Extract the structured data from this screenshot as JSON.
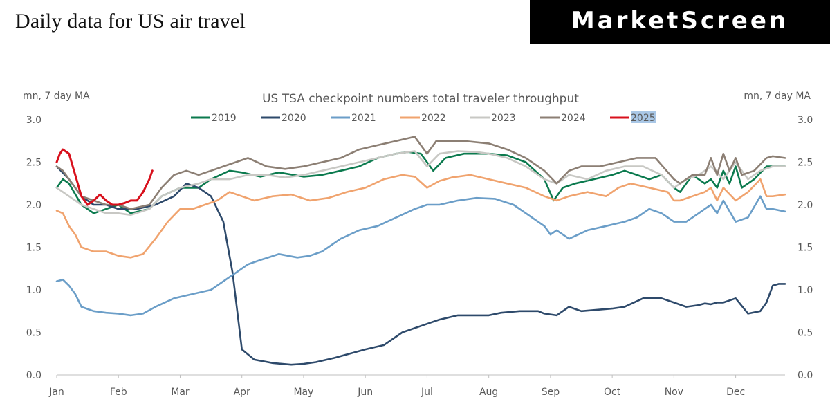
{
  "header": {
    "title": "Daily data for US air travel",
    "brand": "MarketScreen"
  },
  "chart_data": {
    "type": "line",
    "title": "US TSA checkpoint numbers total traveler throughput",
    "ylabel_left": "mn, 7 day MA",
    "ylabel_right": "mn, 7 day MA",
    "ylim": [
      0,
      3
    ],
    "yticks": [
      0,
      0.5,
      1,
      1.5,
      2,
      2.5,
      3
    ],
    "ytick_labels": [
      "0.0",
      "0.5",
      "1.0",
      "1.5",
      "2.0",
      "2.5",
      "3.0"
    ],
    "xlim": [
      0,
      11.8
    ],
    "xticks": [
      0,
      1,
      2,
      3,
      4,
      5,
      6,
      7,
      8,
      9,
      10,
      11
    ],
    "xtick_labels": [
      "Jan",
      "Feb",
      "Mar",
      "Apr",
      "May",
      "Jun",
      "Jul",
      "Aug",
      "Sep",
      "Oct",
      "Nov",
      "Dec"
    ],
    "legend_position": "top-center",
    "legend_highlight": "2025",
    "series": [
      {
        "name": "2019",
        "color": "#0b7a4e",
        "x": [
          0,
          0.1,
          0.2,
          0.4,
          0.6,
          0.8,
          1,
          1.2,
          1.5,
          1.7,
          2,
          2.3,
          2.5,
          2.8,
          3,
          3.3,
          3.6,
          4,
          4.3,
          4.6,
          4.9,
          5.2,
          5.5,
          5.7,
          5.9,
          6.1,
          6.3,
          6.6,
          7,
          7.3,
          7.6,
          7.9,
          8.05,
          8.2,
          8.4,
          8.7,
          9,
          9.2,
          9.4,
          9.6,
          9.8,
          10,
          10.1,
          10.3,
          10.5,
          10.6,
          10.7,
          10.8,
          10.9,
          11,
          11.1,
          11.3,
          11.5,
          11.6,
          11.8
        ],
        "values": [
          2.2,
          2.3,
          2.25,
          2.0,
          1.9,
          1.95,
          2.0,
          1.9,
          1.95,
          2.1,
          2.2,
          2.2,
          2.3,
          2.4,
          2.38,
          2.33,
          2.38,
          2.33,
          2.35,
          2.4,
          2.45,
          2.55,
          2.6,
          2.62,
          2.6,
          2.4,
          2.55,
          2.6,
          2.6,
          2.58,
          2.5,
          2.3,
          2.05,
          2.2,
          2.25,
          2.3,
          2.35,
          2.4,
          2.35,
          2.3,
          2.35,
          2.2,
          2.15,
          2.35,
          2.25,
          2.3,
          2.2,
          2.4,
          2.25,
          2.45,
          2.2,
          2.3,
          2.45,
          2.45,
          2.45
        ]
      },
      {
        "name": "2020",
        "color": "#2e4a6b",
        "x": [
          0,
          0.2,
          0.4,
          0.6,
          0.8,
          1,
          1.3,
          1.6,
          1.9,
          2.1,
          2.3,
          2.5,
          2.7,
          2.85,
          3,
          3.2,
          3.5,
          3.8,
          4,
          4.2,
          4.5,
          5,
          5.3,
          5.6,
          6,
          6.2,
          6.5,
          7,
          7.2,
          7.5,
          7.8,
          7.9,
          8.1,
          8.3,
          8.5,
          9,
          9.2,
          9.5,
          9.8,
          10,
          10.2,
          10.4,
          10.5,
          10.6,
          10.7,
          10.8,
          11,
          11.2,
          11.4,
          11.5,
          11.6,
          11.7,
          11.8
        ],
        "values": [
          2.45,
          2.3,
          2.1,
          2.0,
          2.0,
          1.95,
          1.95,
          2.0,
          2.1,
          2.25,
          2.2,
          2.1,
          1.8,
          1.2,
          0.3,
          0.18,
          0.14,
          0.12,
          0.13,
          0.15,
          0.2,
          0.3,
          0.35,
          0.5,
          0.6,
          0.65,
          0.7,
          0.7,
          0.73,
          0.75,
          0.75,
          0.72,
          0.7,
          0.8,
          0.75,
          0.78,
          0.8,
          0.9,
          0.9,
          0.85,
          0.8,
          0.82,
          0.84,
          0.83,
          0.85,
          0.85,
          0.9,
          0.72,
          0.75,
          0.85,
          1.05,
          1.07,
          1.07
        ]
      },
      {
        "name": "2021",
        "color": "#6b9ec8",
        "x": [
          0,
          0.1,
          0.2,
          0.3,
          0.4,
          0.6,
          0.8,
          1,
          1.2,
          1.4,
          1.6,
          1.9,
          2.2,
          2.5,
          2.7,
          2.9,
          3.1,
          3.3,
          3.6,
          3.9,
          4.1,
          4.3,
          4.6,
          4.9,
          5.2,
          5.5,
          5.8,
          6,
          6.2,
          6.5,
          6.8,
          7.1,
          7.4,
          7.7,
          7.9,
          8,
          8.1,
          8.3,
          8.6,
          8.9,
          9.2,
          9.4,
          9.6,
          9.8,
          10,
          10.2,
          10.4,
          10.5,
          10.6,
          10.7,
          10.8,
          11,
          11.2,
          11.4,
          11.5,
          11.6,
          11.8
        ],
        "values": [
          1.1,
          1.12,
          1.05,
          0.95,
          0.8,
          0.75,
          0.73,
          0.72,
          0.7,
          0.72,
          0.8,
          0.9,
          0.95,
          1.0,
          1.1,
          1.2,
          1.3,
          1.35,
          1.42,
          1.38,
          1.4,
          1.45,
          1.6,
          1.7,
          1.75,
          1.85,
          1.95,
          2.0,
          2.0,
          2.05,
          2.08,
          2.07,
          2.0,
          1.85,
          1.75,
          1.65,
          1.7,
          1.6,
          1.7,
          1.75,
          1.8,
          1.85,
          1.95,
          1.9,
          1.8,
          1.8,
          1.9,
          1.95,
          2.0,
          1.9,
          2.05,
          1.8,
          1.85,
          2.1,
          1.95,
          1.95,
          1.92
        ]
      },
      {
        "name": "2022",
        "color": "#f0a36e",
        "x": [
          0,
          0.1,
          0.2,
          0.3,
          0.4,
          0.6,
          0.8,
          1,
          1.2,
          1.4,
          1.6,
          1.8,
          2,
          2.2,
          2.4,
          2.6,
          2.8,
          3,
          3.2,
          3.5,
          3.8,
          4.1,
          4.4,
          4.7,
          5,
          5.3,
          5.6,
          5.8,
          6,
          6.2,
          6.4,
          6.7,
          7,
          7.3,
          7.6,
          7.9,
          8.1,
          8.3,
          8.6,
          8.9,
          9.1,
          9.3,
          9.6,
          9.9,
          10,
          10.1,
          10.3,
          10.5,
          10.6,
          10.7,
          10.8,
          11,
          11.2,
          11.4,
          11.5,
          11.6,
          11.8
        ],
        "values": [
          1.93,
          1.9,
          1.75,
          1.65,
          1.5,
          1.45,
          1.45,
          1.4,
          1.38,
          1.42,
          1.6,
          1.8,
          1.95,
          1.95,
          2.0,
          2.05,
          2.15,
          2.1,
          2.05,
          2.1,
          2.12,
          2.05,
          2.08,
          2.15,
          2.2,
          2.3,
          2.35,
          2.33,
          2.2,
          2.28,
          2.32,
          2.35,
          2.3,
          2.25,
          2.2,
          2.1,
          2.05,
          2.1,
          2.15,
          2.1,
          2.2,
          2.25,
          2.2,
          2.15,
          2.05,
          2.05,
          2.1,
          2.15,
          2.2,
          2.05,
          2.2,
          2.05,
          2.15,
          2.3,
          2.1,
          2.1,
          2.12
        ]
      },
      {
        "name": "2023",
        "color": "#c8c8c4",
        "x": [
          0,
          0.1,
          0.2,
          0.4,
          0.6,
          0.8,
          1,
          1.2,
          1.5,
          1.7,
          2,
          2.3,
          2.5,
          2.8,
          3.1,
          3.4,
          3.7,
          4,
          4.3,
          4.6,
          4.9,
          5.2,
          5.5,
          5.8,
          6,
          6.2,
          6.5,
          6.8,
          7,
          7.3,
          7.6,
          7.9,
          8.1,
          8.3,
          8.6,
          8.9,
          9.2,
          9.5,
          9.8,
          10,
          10.2,
          10.4,
          10.6,
          10.8,
          11,
          11.2,
          11.4,
          11.6,
          11.8
        ],
        "values": [
          2.2,
          2.15,
          2.1,
          2.0,
          1.95,
          1.9,
          1.9,
          1.88,
          1.95,
          2.1,
          2.2,
          2.25,
          2.3,
          2.3,
          2.35,
          2.35,
          2.32,
          2.35,
          2.4,
          2.45,
          2.5,
          2.55,
          2.6,
          2.63,
          2.45,
          2.6,
          2.63,
          2.62,
          2.6,
          2.55,
          2.45,
          2.3,
          2.25,
          2.35,
          2.3,
          2.4,
          2.45,
          2.45,
          2.35,
          2.2,
          2.3,
          2.35,
          2.45,
          2.3,
          2.5,
          2.3,
          2.4,
          2.45,
          2.45
        ]
      },
      {
        "name": "2024",
        "color": "#8c7f74",
        "x": [
          0,
          0.1,
          0.2,
          0.4,
          0.6,
          0.8,
          1,
          1.2,
          1.5,
          1.7,
          1.9,
          2.1,
          2.3,
          2.5,
          2.7,
          2.9,
          3.1,
          3.4,
          3.7,
          4,
          4.3,
          4.6,
          4.9,
          5.2,
          5.5,
          5.8,
          6,
          6.15,
          6.3,
          6.6,
          7,
          7.3,
          7.6,
          7.9,
          8.1,
          8.3,
          8.5,
          8.8,
          9.1,
          9.4,
          9.7,
          10,
          10.1,
          10.3,
          10.5,
          10.6,
          10.7,
          10.8,
          10.9,
          11,
          11.1,
          11.3,
          11.5,
          11.6,
          11.8
        ],
        "values": [
          2.45,
          2.4,
          2.3,
          2.1,
          2.05,
          2.0,
          2.0,
          1.95,
          2.0,
          2.2,
          2.35,
          2.4,
          2.35,
          2.4,
          2.45,
          2.5,
          2.55,
          2.45,
          2.42,
          2.45,
          2.5,
          2.55,
          2.65,
          2.7,
          2.75,
          2.8,
          2.6,
          2.75,
          2.75,
          2.75,
          2.72,
          2.65,
          2.55,
          2.4,
          2.25,
          2.4,
          2.45,
          2.45,
          2.5,
          2.55,
          2.55,
          2.3,
          2.25,
          2.35,
          2.35,
          2.55,
          2.35,
          2.6,
          2.4,
          2.55,
          2.35,
          2.4,
          2.55,
          2.57,
          2.55
        ]
      },
      {
        "name": "2025",
        "color": "#d8101c",
        "x": [
          0,
          0.05,
          0.1,
          0.2,
          0.3,
          0.4,
          0.5,
          0.6,
          0.7,
          0.8,
          0.9,
          1,
          1.1,
          1.2,
          1.3,
          1.4,
          1.5,
          1.55
        ],
        "values": [
          2.5,
          2.6,
          2.65,
          2.6,
          2.35,
          2.1,
          2.0,
          2.05,
          2.12,
          2.05,
          2.0,
          2.0,
          2.02,
          2.05,
          2.05,
          2.15,
          2.3,
          2.4
        ]
      }
    ]
  }
}
